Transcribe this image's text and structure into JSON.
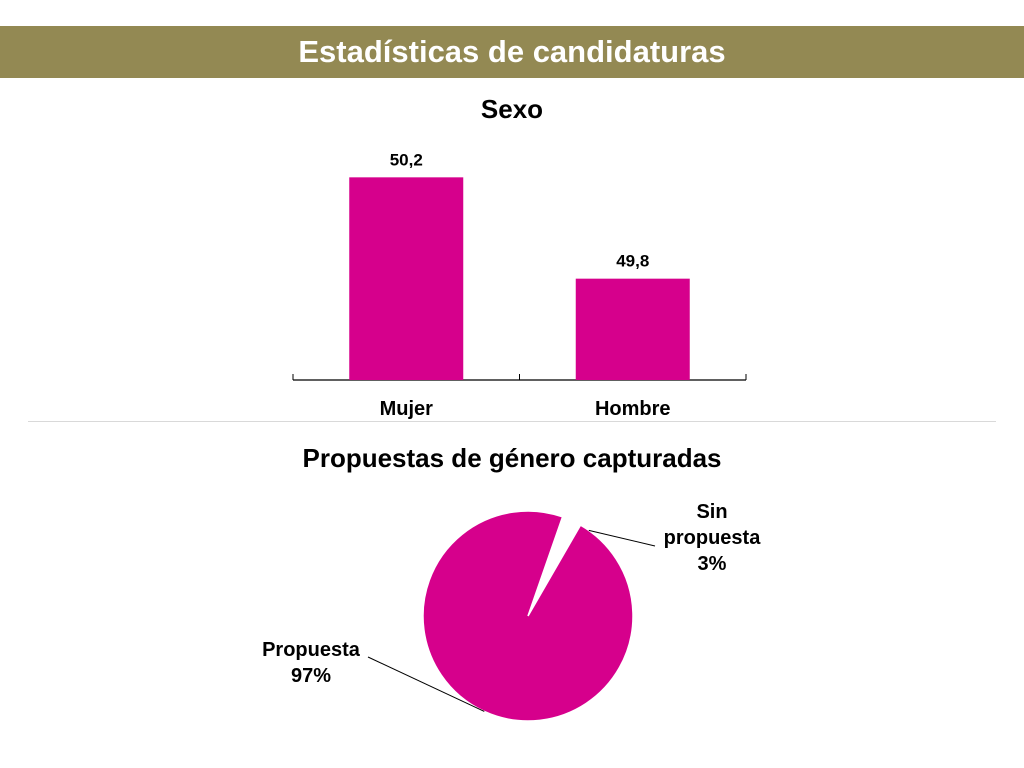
{
  "header": {
    "title": "Estadísticas de candidaturas",
    "background": "#938953"
  },
  "chart_data": [
    {
      "type": "bar",
      "title": "Sexo",
      "categories": [
        "Mujer",
        "Hombre"
      ],
      "values": [
        50.2,
        49.8
      ],
      "value_labels": [
        "50,2",
        "49,8"
      ],
      "ylim": [
        49.4,
        50.3
      ],
      "color": "#d6008c",
      "xlabel": "",
      "ylabel": "",
      "grid": false,
      "legend": "none"
    },
    {
      "type": "pie",
      "title": "Propuestas de género capturadas",
      "slices": [
        {
          "label": "Sin propuesta",
          "value": 3,
          "pct_label": "3%",
          "color": "#ffff00"
        },
        {
          "label": "Propuesta",
          "value": 97,
          "pct_label": "97%",
          "color": "#d6008c"
        }
      ],
      "legend": "none"
    }
  ]
}
